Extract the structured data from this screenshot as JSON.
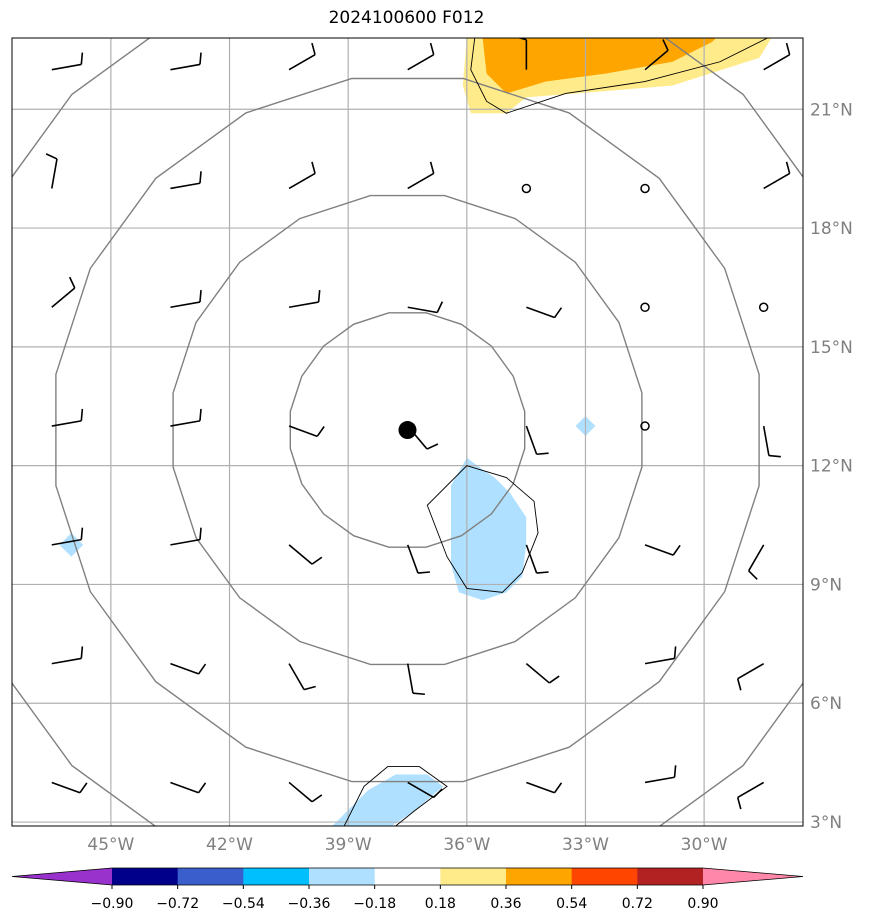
{
  "title": "2024100600 F012",
  "map": {
    "lon_range": [
      -47.5,
      -27.5
    ],
    "lat_range": [
      2.9,
      22.8
    ],
    "gridlines": true,
    "lon_ticks": [
      {
        "value": -45,
        "label": "45°W"
      },
      {
        "value": -42,
        "label": "42°W"
      },
      {
        "value": -39,
        "label": "39°W"
      },
      {
        "value": -36,
        "label": "36°W"
      },
      {
        "value": -33,
        "label": "33°W"
      },
      {
        "value": -30,
        "label": "30°W"
      }
    ],
    "lat_ticks": [
      {
        "value": 3,
        "label": "3°N"
      },
      {
        "value": 6,
        "label": "6°N"
      },
      {
        "value": 9,
        "label": "9°N"
      },
      {
        "value": 12,
        "label": "12°N"
      },
      {
        "value": 15,
        "label": "15°N"
      },
      {
        "value": 18,
        "label": "18°N"
      },
      {
        "value": 21,
        "label": "21°N"
      }
    ],
    "storm_center": {
      "lon": -37.5,
      "lat": 12.9
    },
    "range_rings_deg": [
      3,
      6,
      9,
      12
    ],
    "colors": {
      "grid": "#b0b0b0",
      "ring": "#808080",
      "contour_light_blue": "#b0e0ff",
      "contour_light_yellow": "#ffeb8a",
      "contour_orange": "#ffa500",
      "barb": "#000000"
    }
  },
  "colorbar": {
    "colors": [
      "#9932cc",
      "#00008b",
      "#3a5fcd",
      "#00bfff",
      "#b0e0ff",
      "#ffffff",
      "#ffeb8a",
      "#ffa500",
      "#ff4500",
      "#b22222",
      "#ff88aa"
    ],
    "labels": [
      "−0.90",
      "−0.72",
      "−0.54",
      "−0.36",
      "−0.18",
      "0.18",
      "0.36",
      "0.54",
      "0.72",
      "0.90"
    ]
  }
}
